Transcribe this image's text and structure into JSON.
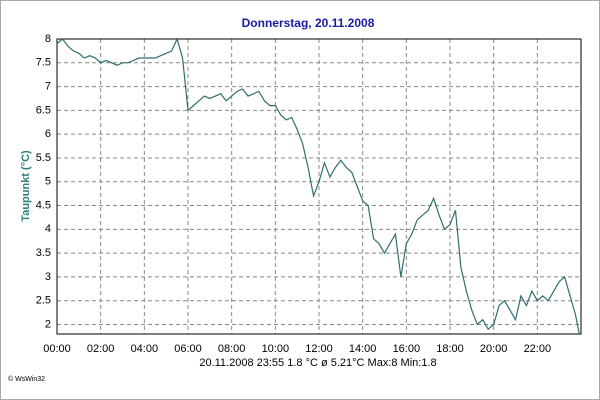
{
  "chart_data": {
    "type": "line",
    "title": "Donnerstag, 20.11.2008",
    "ylabel": "Taupunkt  (°C)",
    "subtitle": "20.11.2008  23:55   1.8 °C   ø 5.21°C  Max:8  Min:1.8",
    "credit": "© WsWin32",
    "xlim": [
      0,
      24
    ],
    "ylim": [
      1.8,
      8
    ],
    "xticks": [
      {
        "value": 0,
        "label": "00:00"
      },
      {
        "value": 2,
        "label": "02:00"
      },
      {
        "value": 4,
        "label": "04:00"
      },
      {
        "value": 6,
        "label": "06:00"
      },
      {
        "value": 8,
        "label": "08:00"
      },
      {
        "value": 10,
        "label": "10:00"
      },
      {
        "value": 12,
        "label": "12:00"
      },
      {
        "value": 14,
        "label": "14:00"
      },
      {
        "value": 16,
        "label": "16:00"
      },
      {
        "value": 18,
        "label": "18:00"
      },
      {
        "value": 20,
        "label": "20:00"
      },
      {
        "value": 22,
        "label": "22:00"
      }
    ],
    "yticks": [
      2,
      2.5,
      3,
      3.5,
      4,
      4.5,
      5,
      5.5,
      6,
      6.5,
      7,
      7.5,
      8
    ],
    "grid": true,
    "x": [
      0,
      0.25,
      0.5,
      0.75,
      1,
      1.25,
      1.5,
      1.75,
      2,
      2.25,
      2.5,
      2.75,
      3,
      3.25,
      3.5,
      3.75,
      4,
      4.25,
      4.5,
      4.75,
      5,
      5.25,
      5.5,
      5.75,
      6,
      6.25,
      6.5,
      6.75,
      7,
      7.25,
      7.5,
      7.75,
      8,
      8.25,
      8.5,
      8.75,
      9,
      9.25,
      9.5,
      9.75,
      10,
      10.25,
      10.5,
      10.75,
      11,
      11.25,
      11.5,
      11.75,
      12,
      12.25,
      12.5,
      12.75,
      13,
      13.25,
      13.5,
      13.75,
      14,
      14.25,
      14.5,
      14.75,
      15,
      15.25,
      15.5,
      15.75,
      16,
      16.25,
      16.5,
      16.75,
      17,
      17.25,
      17.5,
      17.75,
      18,
      18.25,
      18.5,
      18.75,
      19,
      19.25,
      19.5,
      19.75,
      20,
      20.25,
      20.5,
      20.75,
      21,
      21.25,
      21.5,
      21.75,
      22,
      22.25,
      22.5,
      22.75,
      23,
      23.25,
      23.5,
      23.75,
      23.92
    ],
    "series": [
      {
        "name": "Taupunkt",
        "color": "#2f6f6f",
        "values": [
          7.9,
          8.0,
          7.85,
          7.75,
          7.7,
          7.6,
          7.65,
          7.6,
          7.5,
          7.55,
          7.5,
          7.45,
          7.5,
          7.5,
          7.55,
          7.6,
          7.6,
          7.6,
          7.6,
          7.65,
          7.7,
          7.75,
          8.0,
          7.6,
          6.5,
          6.6,
          6.7,
          6.8,
          6.75,
          6.8,
          6.85,
          6.7,
          6.8,
          6.9,
          6.95,
          6.8,
          6.85,
          6.9,
          6.7,
          6.6,
          6.6,
          6.4,
          6.3,
          6.35,
          6.1,
          5.8,
          5.3,
          4.7,
          5.0,
          5.4,
          5.1,
          5.3,
          5.45,
          5.3,
          5.2,
          4.9,
          4.6,
          4.5,
          3.8,
          3.7,
          3.5,
          3.7,
          3.9,
          3.0,
          3.7,
          3.9,
          4.2,
          4.3,
          4.4,
          4.65,
          4.3,
          4.0,
          4.1,
          4.4,
          3.2,
          2.7,
          2.3,
          2.0,
          2.1,
          1.9,
          2.0,
          2.4,
          2.5,
          2.3,
          2.1,
          2.6,
          2.4,
          2.7,
          2.5,
          2.6,
          2.5,
          2.7,
          2.9,
          3.0,
          2.6,
          2.2,
          1.8
        ]
      }
    ]
  }
}
